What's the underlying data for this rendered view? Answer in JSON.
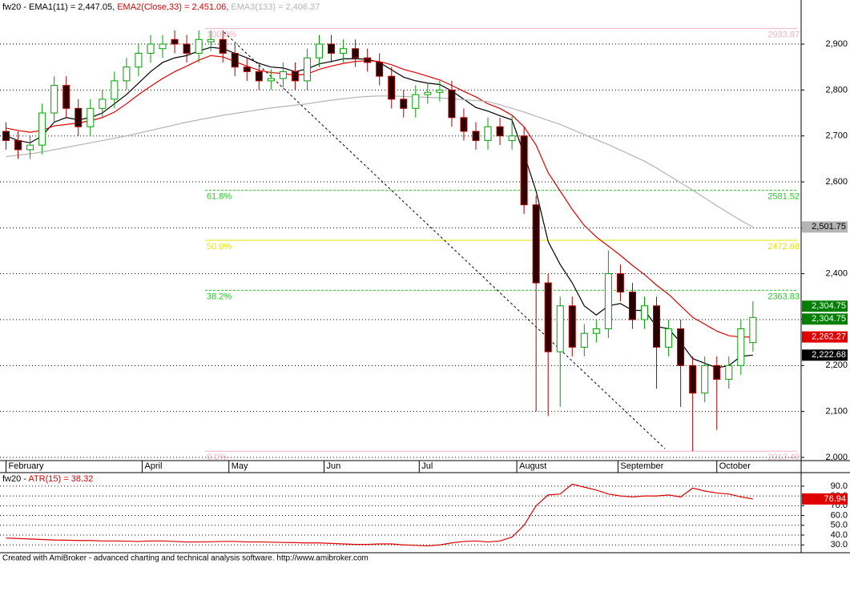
{
  "chart_data": [
    {
      "type": "candlestick",
      "title": "fw20 -",
      "x": [
        0,
        1,
        2,
        3,
        4,
        5,
        6,
        7,
        8,
        9,
        10,
        11,
        12,
        13,
        14,
        15,
        16,
        17,
        18,
        19,
        20,
        21,
        22,
        23,
        24,
        25,
        26,
        27,
        28,
        29,
        30,
        31,
        32,
        33,
        34,
        35,
        36,
        37,
        38,
        39,
        40,
        41,
        42,
        43,
        44,
        45,
        46,
        47,
        48,
        49,
        50,
        51,
        52,
        53,
        54,
        55,
        56,
        57,
        58,
        59,
        60,
        61,
        62
      ],
      "xlim": [
        -0.5,
        66
      ],
      "ylim": [
        1993,
        2996
      ],
      "xticks": [
        {
          "value": 0,
          "label": "February"
        },
        {
          "value": 11.3,
          "label": "April"
        },
        {
          "value": 18.5,
          "label": "May"
        },
        {
          "value": 26.4,
          "label": "Jun"
        },
        {
          "value": 34.3,
          "label": "Jul"
        },
        {
          "value": 42.4,
          "label": "August"
        },
        {
          "value": 50.8,
          "label": "September"
        },
        {
          "value": 59,
          "label": "October"
        }
      ],
      "yticks": [
        {
          "value": 2000,
          "label": "2,000"
        },
        {
          "value": 2100,
          "label": "2,100"
        },
        {
          "value": 2200,
          "label": "2,200"
        },
        {
          "value": 2300,
          "label": "2,300"
        },
        {
          "value": 2400,
          "label": "2,400"
        },
        {
          "value": 2500,
          "label": "2,500"
        },
        {
          "value": 2600,
          "label": "2,600"
        },
        {
          "value": 2700,
          "label": "2,700"
        },
        {
          "value": 2800,
          "label": "2,800"
        },
        {
          "value": 2900,
          "label": "2,900"
        }
      ],
      "grid": true,
      "candles": {
        "up_color": "#00a000",
        "down_color": "#2a0000",
        "down_edge": "#b00000",
        "open": [
          2710,
          2690,
          2670,
          2680,
          2750,
          2810,
          2760,
          2720,
          2760,
          2780,
          2820,
          2850,
          2880,
          2890,
          2910,
          2900,
          2880,
          2905,
          2910,
          2880,
          2850,
          2840,
          2820,
          2825,
          2840,
          2820,
          2870,
          2900,
          2880,
          2890,
          2870,
          2860,
          2830,
          2780,
          2760,
          2790,
          2795,
          2800,
          2740,
          2710,
          2690,
          2720,
          2690,
          2700,
          2550,
          2380,
          2230,
          2330,
          2240,
          2270,
          2280,
          2400,
          2360,
          2300,
          2330,
          2240,
          2280,
          2200,
          2140,
          2200,
          2170,
          2200,
          2250
        ],
        "high": [
          2730,
          2710,
          2700,
          2770,
          2830,
          2830,
          2780,
          2780,
          2800,
          2840,
          2870,
          2900,
          2920,
          2920,
          2930,
          2920,
          2930,
          2930,
          2930,
          2900,
          2870,
          2860,
          2845,
          2860,
          2860,
          2890,
          2920,
          2920,
          2910,
          2910,
          2890,
          2880,
          2850,
          2800,
          2810,
          2815,
          2820,
          2820,
          2760,
          2730,
          2740,
          2740,
          2745,
          2720,
          2570,
          2400,
          2350,
          2350,
          2290,
          2300,
          2450,
          2420,
          2380,
          2350,
          2350,
          2300,
          2300,
          2220,
          2220,
          2220,
          2220,
          2300,
          2340
        ],
        "low": [
          2670,
          2650,
          2650,
          2660,
          2730,
          2740,
          2700,
          2700,
          2740,
          2760,
          2800,
          2830,
          2860,
          2870,
          2880,
          2860,
          2860,
          2885,
          2860,
          2830,
          2820,
          2800,
          2800,
          2805,
          2800,
          2800,
          2850,
          2860,
          2860,
          2850,
          2840,
          2810,
          2760,
          2740,
          2740,
          2770,
          2775,
          2720,
          2690,
          2670,
          2670,
          2680,
          2670,
          2530,
          2100,
          2090,
          2110,
          2220,
          2220,
          2250,
          2260,
          2340,
          2280,
          2280,
          2150,
          2220,
          2110,
          2013.49,
          2120,
          2060,
          2150,
          2180,
          2230
        ],
        "close": [
          2690,
          2670,
          2680,
          2750,
          2810,
          2760,
          2720,
          2760,
          2780,
          2820,
          2850,
          2880,
          2900,
          2900,
          2900,
          2880,
          2910,
          2910,
          2880,
          2850,
          2840,
          2820,
          2825,
          2840,
          2820,
          2870,
          2900,
          2880,
          2890,
          2870,
          2860,
          2830,
          2780,
          2760,
          2790,
          2795,
          2800,
          2740,
          2710,
          2690,
          2720,
          2700,
          2700,
          2550,
          2380,
          2230,
          2330,
          2240,
          2270,
          2280,
          2400,
          2360,
          2300,
          2330,
          2240,
          2280,
          2200,
          2140,
          2200,
          2170,
          2200,
          2280,
          2304.75
        ],
        "last_value_labels": [
          "2,304.75",
          "2,304.75"
        ],
        "label_color": "#008000"
      },
      "series": [
        {
          "name": "EMA1(11) = 2,447.05,",
          "color": "#000000",
          "last_value_label": "2,222.68",
          "values": [
            2700,
            2690,
            2685,
            2700,
            2730,
            2740,
            2735,
            2740,
            2750,
            2770,
            2790,
            2815,
            2840,
            2860,
            2870,
            2875,
            2885,
            2893,
            2890,
            2880,
            2870,
            2858,
            2850,
            2848,
            2840,
            2846,
            2857,
            2862,
            2868,
            2868,
            2867,
            2860,
            2844,
            2828,
            2820,
            2815,
            2812,
            2798,
            2780,
            2762,
            2754,
            2744,
            2735,
            2660,
            2580,
            2470,
            2420,
            2380,
            2330,
            2310,
            2330,
            2335,
            2320,
            2320,
            2285,
            2280,
            2250,
            2215,
            2205,
            2195,
            2200,
            2220,
            2222.68
          ]
        },
        {
          "name": "EMA2(Close,33) = 2,451.06,",
          "color": "#e00000",
          "last_value_label": "2,262.27",
          "values": [
            2717,
            2712,
            2708,
            2712,
            2722,
            2725,
            2728,
            2733,
            2740,
            2752,
            2770,
            2790,
            2808,
            2825,
            2840,
            2852,
            2865,
            2875,
            2872,
            2862,
            2852,
            2843,
            2838,
            2836,
            2832,
            2835,
            2845,
            2852,
            2858,
            2862,
            2864,
            2862,
            2855,
            2845,
            2838,
            2830,
            2822,
            2810,
            2797,
            2785,
            2770,
            2760,
            2745,
            2720,
            2680,
            2620,
            2580,
            2540,
            2505,
            2480,
            2460,
            2440,
            2418,
            2398,
            2375,
            2355,
            2330,
            2305,
            2290,
            2275,
            2265,
            2262,
            2262.27
          ]
        },
        {
          "name": "EMA3(133) = 2,406.37",
          "color": "#b4b4b4",
          "last_value_label": "2,501.75",
          "values": [
            2655,
            2658,
            2661,
            2665,
            2670,
            2675,
            2680,
            2685,
            2690,
            2695,
            2700,
            2706,
            2712,
            2718,
            2724,
            2730,
            2735,
            2740,
            2745,
            2749,
            2753,
            2757,
            2761,
            2764,
            2767,
            2770,
            2774,
            2778,
            2781,
            2784,
            2786,
            2787,
            2787,
            2786,
            2785,
            2784,
            2783,
            2781,
            2779,
            2777,
            2775,
            2768,
            2760,
            2752,
            2743,
            2734,
            2725,
            2714,
            2703,
            2692,
            2681,
            2669,
            2657,
            2645,
            2630,
            2614,
            2598,
            2582,
            2565,
            2548,
            2532,
            2516,
            2501.75
          ]
        }
      ],
      "levels": [
        {
          "value": 2933.87,
          "label": "100.0%",
          "color": "#f4b0c0",
          "dashed": false
        },
        {
          "value": 2581.52,
          "label": "61.8%",
          "color": "#22cc22",
          "dashed": true
        },
        {
          "value": 2472.68,
          "label": "50.0%",
          "color": "#e6e600",
          "dashed": false
        },
        {
          "value": 2363.83,
          "label": "38.2%",
          "color": "#22cc22",
          "dashed": true
        },
        {
          "value": 2013.49,
          "label": "0.0%",
          "color": "#f4b0c0",
          "dashed": false
        }
      ],
      "trendline": {
        "x": [
          18.1,
          54.7
        ],
        "values": [
          2926,
          2019
        ]
      }
    },
    {
      "type": "line",
      "title": "fw20 -",
      "x": [
        0,
        1,
        2,
        3,
        4,
        5,
        6,
        7,
        8,
        9,
        10,
        11,
        12,
        13,
        14,
        15,
        16,
        17,
        18,
        19,
        20,
        21,
        22,
        23,
        24,
        25,
        26,
        27,
        28,
        29,
        30,
        31,
        32,
        33,
        34,
        35,
        36,
        37,
        38,
        39,
        40,
        41,
        42,
        43,
        44,
        45,
        46,
        47,
        48,
        49,
        50,
        51,
        52,
        53,
        54,
        55,
        56,
        57,
        58,
        59,
        60,
        61,
        62
      ],
      "xlim": [
        -0.5,
        66
      ],
      "ylim": [
        22,
        103
      ],
      "yticks": [
        {
          "value": 30,
          "label": "30.0"
        },
        {
          "value": 40,
          "label": "40.0"
        },
        {
          "value": 50,
          "label": "50.0"
        },
        {
          "value": 60,
          "label": "60.0"
        },
        {
          "value": 70,
          "label": "70.0"
        },
        {
          "value": 80,
          "label": "80.0"
        },
        {
          "value": 90,
          "label": "90.0"
        }
      ],
      "grid": true,
      "series": [
        {
          "name": "ATR(15) = 38.32",
          "color": "#e00000",
          "last_value_label": "76.94",
          "values": [
            37,
            36.5,
            36,
            35.5,
            35,
            34.8,
            34.5,
            34.5,
            34,
            34,
            33.8,
            33.5,
            34,
            34,
            33.5,
            33,
            33,
            33.2,
            33.5,
            33.5,
            33,
            33,
            32.8,
            32.5,
            32.3,
            32,
            32,
            31.5,
            31,
            30.5,
            30.5,
            31,
            31,
            30,
            29.5,
            29,
            30,
            32,
            33.5,
            34,
            33,
            34,
            38,
            50,
            70,
            81,
            82,
            92,
            89,
            86,
            82,
            80,
            79,
            80,
            80,
            81,
            79,
            88,
            85,
            83,
            82,
            79,
            76.94
          ]
        }
      ]
    }
  ],
  "footer": "Created with AmiBroker - advanced charting and technical analysis software. http://www.amibroker.com"
}
